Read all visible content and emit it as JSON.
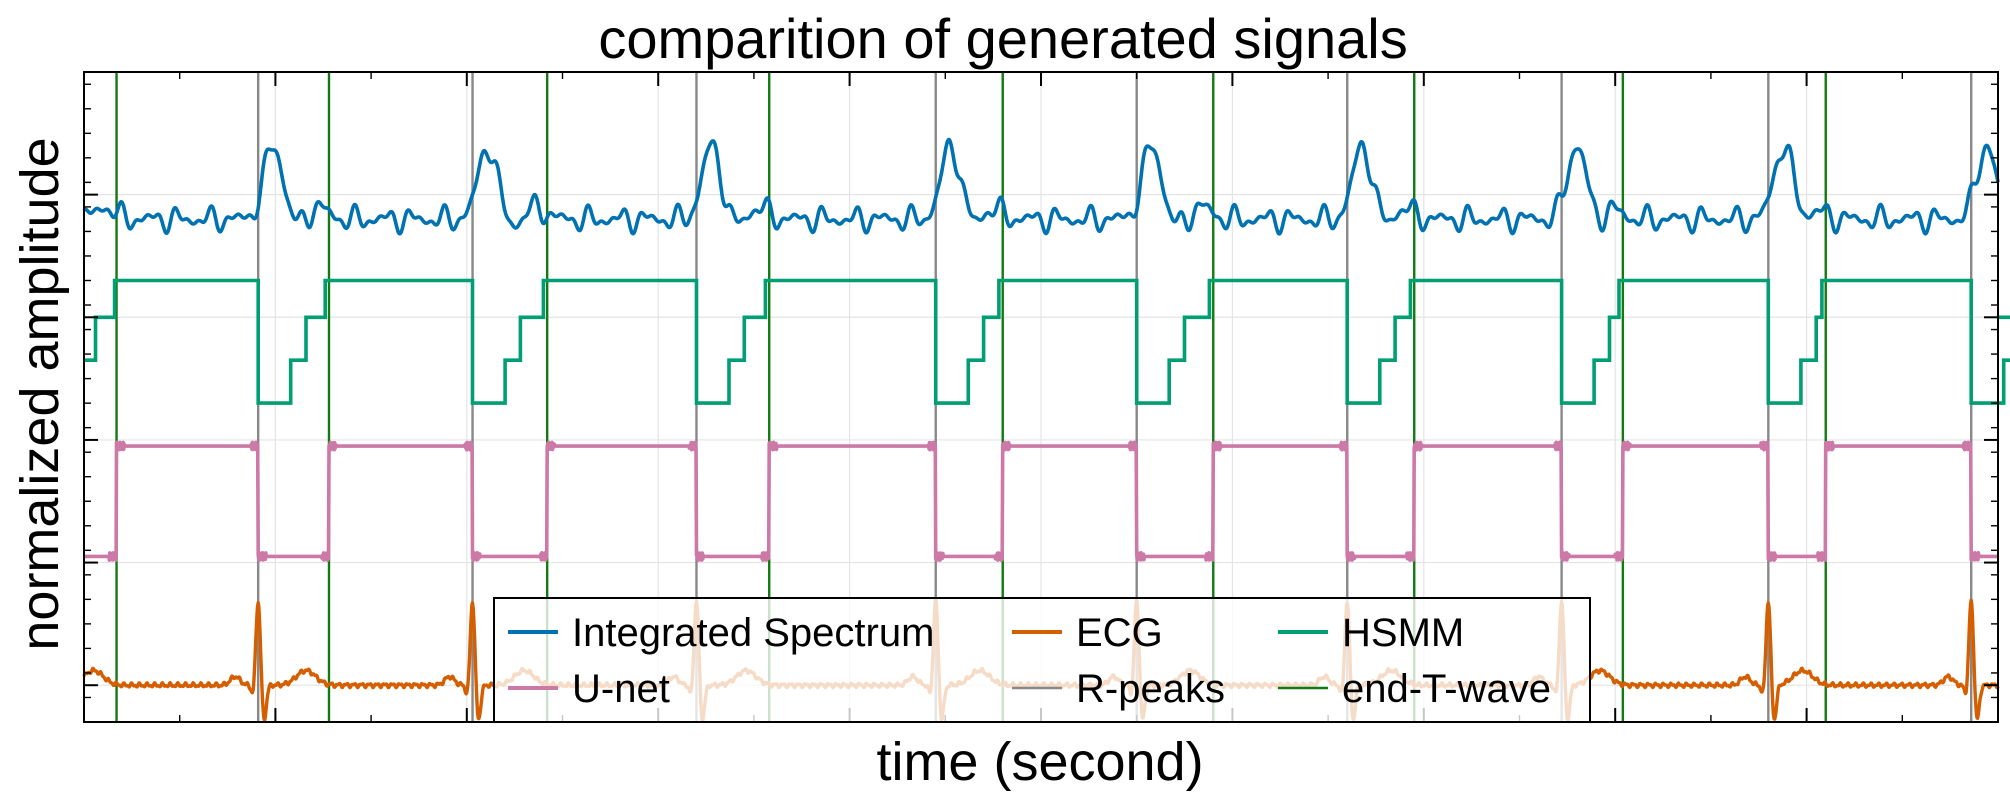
{
  "chart_data": {
    "type": "line",
    "title": "comparition of generated signals",
    "xlabel": "time (second)",
    "ylabel": "normalized amplitude",
    "x_range": [
      0,
      10
    ],
    "y_range": [
      -0.3,
      5.0
    ],
    "y_ticks": [
      0,
      1,
      2,
      3,
      4,
      5
    ],
    "grid": true,
    "legend_position": "bottom-center",
    "legend_columns": 3,
    "series": [
      {
        "name": "Integrated Spectrum",
        "color": "#0072B2",
        "baseline": 3.8,
        "amplitude": 0.6
      },
      {
        "name": "ECG",
        "color": "#D55E00",
        "baseline": 0.0,
        "amplitude": 0.7
      },
      {
        "name": "HSMM",
        "color": "#009E73",
        "levels": [
          2.3,
          2.65,
          3.0,
          3.3
        ]
      },
      {
        "name": "U-net",
        "color": "#CC79A7",
        "levels": [
          1.05,
          1.95
        ]
      },
      {
        "name": "R-peaks",
        "color": "#888888"
      },
      {
        "name": "end-T-wave",
        "color": "#117A11"
      }
    ],
    "r_peaks": [
      0.91,
      2.03,
      3.2,
      4.45,
      5.5,
      6.6,
      7.72,
      8.8,
      9.86
    ],
    "end_t_waves": [
      0.17,
      1.28,
      2.42,
      3.58,
      4.8,
      5.9,
      6.95,
      8.04,
      9.1
    ]
  }
}
